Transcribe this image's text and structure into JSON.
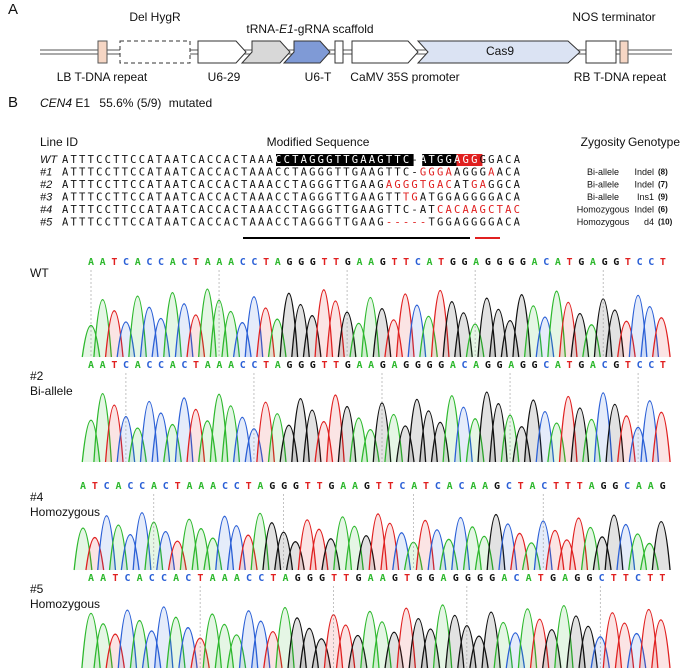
{
  "panel_a": {
    "label": "A",
    "del_hygr": "Del HygR",
    "scaffold": [
      "tRNA-",
      "E1",
      "-gRNA scaffold"
    ],
    "nos": "NOS terminator",
    "cas9": "Cas9",
    "lb": "LB T-DNA repeat",
    "u6_29": "U6-29",
    "u6_t": "U6-T",
    "camv": "CaMV 35S promoter",
    "rb": "RB T-DNA repeat"
  },
  "panel_b": {
    "label": "B",
    "gene": "CEN4",
    "target": "E1",
    "rate": "55.6% (5/9)",
    "status": "mutated",
    "headers": {
      "line_id": "Line ID",
      "sequence": "Modified Sequence",
      "zygosity": "Zygosity",
      "genotype": "Genotype"
    },
    "rows": [
      {
        "id": "WT",
        "segments": [
          {
            "text": "ATTTCCTTCCATAATCACCACTAAA"
          },
          {
            "text": "CCTAGGGTTGAAGTTC",
            "color": "#fff",
            "bg": "#000"
          },
          {
            "text": "-"
          },
          {
            "text": "ATGG",
            "color": "#fff",
            "bg": "#000"
          },
          {
            "text": "AGG",
            "color": "#fff",
            "bg": "#e02020"
          },
          {
            "text": "GGACA"
          }
        ]
      },
      {
        "id": "#1",
        "segments": [
          {
            "text": "ATTTCCTTCCATAATCACCACTAAACCTAGGGTTGAAGTTC-"
          },
          {
            "text": "GGGA",
            "color": "#e02020"
          },
          {
            "text": "AGGG"
          },
          {
            "text": "A",
            "color": "#e02020"
          },
          {
            "text": "ACA"
          }
        ],
        "zygosity": "Bi-allele",
        "genotype": "Indel",
        "count": "(8)"
      },
      {
        "id": "#2",
        "segments": [
          {
            "text": "ATTTCCTTCCATAATCACCACTAAACCTAGGGTTGAAG"
          },
          {
            "text": "AGGGTGAC",
            "color": "#e02020"
          },
          {
            "text": "AT"
          },
          {
            "text": "GA",
            "color": "#e02020"
          },
          {
            "text": "GGCA"
          }
        ],
        "zygosity": "Bi-allele",
        "genotype": "Indel",
        "count": "(7)"
      },
      {
        "id": "#3",
        "segments": [
          {
            "text": "ATTTCCTTCCATAATCACCACTAAACCTAGGGTTGAAGTT"
          },
          {
            "text": "TG",
            "color": "#e02020"
          },
          {
            "text": "ATGGAGGGGACA"
          }
        ],
        "zygosity": "Bi-allele",
        "genotype": "Ins1",
        "count": "(9)"
      },
      {
        "id": "#4",
        "segments": [
          {
            "text": "ATTTCCTTCCATAATCACCACTAAACCTAGGGTTGAAGTTC-AT"
          },
          {
            "text": "CACAAGCTAC",
            "color": "#e02020"
          }
        ],
        "zygosity": "Homozygous",
        "genotype": "Indel",
        "count": "(6)"
      },
      {
        "id": "#5",
        "segments": [
          {
            "text": "ATTTCCTTCCATAATCACCACTAAACCTAGGGTTGAAG"
          },
          {
            "text": "-----",
            "color": "#e02020"
          },
          {
            "text": "TGGAGGGGACA"
          }
        ],
        "zygosity": "Homozygous",
        "genotype": "d4",
        "count": "(10)"
      }
    ],
    "traces": [
      {
        "labels": [
          "WT"
        ],
        "bases": "AATCACCACTAAACCTAGGGTTGAAGTTCATGGAGGGGACATGAGGTCCT"
      },
      {
        "labels": [
          "#2",
          "Bi-allele"
        ],
        "bases": "AATCACCACTAAACCTAGGGTTGAAGAGGGGACAGGAGGCATGACGTCCT"
      },
      {
        "labels": [
          "#4",
          "Homozygous"
        ],
        "bases": "ATCACCACTAAACCTAGGGTTGAAGTTCATCACAAGCTACTTTAGGCAAG"
      },
      {
        "labels": [
          "#5",
          "Homozygous"
        ],
        "bases": "AATCACCACTAAACCTAGGGTTGAAGTGGAGGGGACATGAGGCTTCTT"
      }
    ]
  }
}
